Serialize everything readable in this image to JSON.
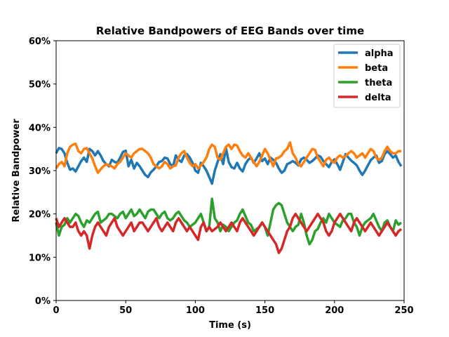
{
  "chart_data": {
    "type": "line",
    "title": "Relative Bandpowers of EEG Bands over time",
    "xlabel": "Time (s)",
    "ylabel": "Relative Bandpower",
    "xlim": [
      0,
      250
    ],
    "ylim": [
      0,
      0.6
    ],
    "xticks": [
      0,
      50,
      100,
      150,
      200,
      250
    ],
    "xtick_labels": [
      "0",
      "50",
      "100",
      "150",
      "200",
      "250"
    ],
    "yticks": [
      0,
      0.1,
      0.2,
      0.3,
      0.4,
      0.5,
      0.6
    ],
    "ytick_labels": [
      "0%",
      "10%",
      "20%",
      "30%",
      "40%",
      "50%",
      "60%"
    ],
    "grid": false,
    "legend_position": "top-right",
    "x": [
      0,
      2,
      4,
      6,
      8,
      10,
      12,
      14,
      16,
      18,
      20,
      22,
      24,
      26,
      28,
      30,
      32,
      34,
      36,
      38,
      40,
      42,
      44,
      46,
      48,
      50,
      52,
      54,
      56,
      58,
      60,
      62,
      64,
      66,
      68,
      70,
      72,
      74,
      76,
      78,
      80,
      82,
      84,
      86,
      88,
      90,
      92,
      94,
      96,
      98,
      100,
      102,
      104,
      106,
      108,
      110,
      112,
      114,
      116,
      118,
      120,
      122,
      124,
      126,
      128,
      130,
      132,
      134,
      136,
      138,
      140,
      142,
      144,
      146,
      148,
      150,
      152,
      154,
      156,
      158,
      160,
      162,
      164,
      166,
      168,
      170,
      172,
      174,
      176,
      178,
      180,
      182,
      184,
      186,
      188,
      190,
      192,
      194,
      196,
      198,
      200,
      202,
      204,
      206,
      208,
      210,
      212,
      214,
      216,
      218,
      220,
      222,
      224,
      226,
      228,
      230,
      232,
      234,
      236,
      238,
      240,
      242,
      244,
      246,
      248
    ],
    "series": [
      {
        "name": "alpha",
        "color": "#1f77b4",
        "values": [
          0.34,
          0.352,
          0.35,
          0.34,
          0.318,
          0.302,
          0.305,
          0.298,
          0.31,
          0.322,
          0.33,
          0.32,
          0.35,
          0.345,
          0.335,
          0.345,
          0.335,
          0.322,
          0.315,
          0.31,
          0.325,
          0.32,
          0.318,
          0.33,
          0.343,
          0.346,
          0.31,
          0.325,
          0.305,
          0.318,
          0.31,
          0.3,
          0.29,
          0.285,
          0.296,
          0.302,
          0.31,
          0.32,
          0.322,
          0.33,
          0.328,
          0.315,
          0.31,
          0.335,
          0.325,
          0.32,
          0.335,
          0.338,
          0.33,
          0.318,
          0.3,
          0.295,
          0.318,
          0.31,
          0.3,
          0.285,
          0.27,
          0.3,
          0.32,
          0.338,
          0.315,
          0.352,
          0.32,
          0.308,
          0.305,
          0.318,
          0.305,
          0.298,
          0.315,
          0.325,
          0.33,
          0.318,
          0.328,
          0.34,
          0.322,
          0.328,
          0.315,
          0.33,
          0.325,
          0.318,
          0.305,
          0.295,
          0.3,
          0.315,
          0.318,
          0.322,
          0.318,
          0.312,
          0.326,
          0.33,
          0.325,
          0.318,
          0.322,
          0.328,
          0.335,
          0.332,
          0.322,
          0.315,
          0.308,
          0.32,
          0.326,
          0.315,
          0.302,
          0.32,
          0.338,
          0.33,
          0.323,
          0.318,
          0.312,
          0.3,
          0.29,
          0.3,
          0.312,
          0.324,
          0.33,
          0.335,
          0.318,
          0.322,
          0.338,
          0.345,
          0.338,
          0.33,
          0.335,
          0.32,
          0.31
        ]
      },
      {
        "name": "beta",
        "color": "#ff7f0e",
        "values": [
          0.305,
          0.315,
          0.32,
          0.31,
          0.34,
          0.355,
          0.36,
          0.362,
          0.345,
          0.34,
          0.35,
          0.352,
          0.34,
          0.328,
          0.31,
          0.295,
          0.303,
          0.31,
          0.315,
          0.312,
          0.31,
          0.305,
          0.315,
          0.32,
          0.33,
          0.34,
          0.335,
          0.33,
          0.34,
          0.345,
          0.35,
          0.35,
          0.345,
          0.34,
          0.33,
          0.315,
          0.31,
          0.305,
          0.31,
          0.32,
          0.315,
          0.305,
          0.31,
          0.312,
          0.33,
          0.34,
          0.345,
          0.33,
          0.318,
          0.31,
          0.315,
          0.305,
          0.312,
          0.32,
          0.33,
          0.35,
          0.36,
          0.355,
          0.33,
          0.325,
          0.34,
          0.355,
          0.36,
          0.35,
          0.36,
          0.358,
          0.345,
          0.335,
          0.33,
          0.34,
          0.33,
          0.32,
          0.31,
          0.32,
          0.335,
          0.35,
          0.34,
          0.325,
          0.31,
          0.328,
          0.33,
          0.335,
          0.345,
          0.35,
          0.365,
          0.34,
          0.33,
          0.315,
          0.31,
          0.32,
          0.33,
          0.34,
          0.35,
          0.348,
          0.33,
          0.32,
          0.31,
          0.325,
          0.33,
          0.322,
          0.318,
          0.33,
          0.335,
          0.33,
          0.333,
          0.34,
          0.345,
          0.34,
          0.33,
          0.335,
          0.34,
          0.33,
          0.34,
          0.35,
          0.345,
          0.33,
          0.325,
          0.33,
          0.345,
          0.355,
          0.345,
          0.34,
          0.34,
          0.345,
          0.345
        ]
      },
      {
        "name": "theta",
        "color": "#2ca02c",
        "values": [
          0.18,
          0.15,
          0.17,
          0.175,
          0.19,
          0.18,
          0.19,
          0.2,
          0.195,
          0.18,
          0.17,
          0.185,
          0.18,
          0.19,
          0.2,
          0.205,
          0.18,
          0.185,
          0.19,
          0.2,
          0.2,
          0.195,
          0.19,
          0.2,
          0.205,
          0.19,
          0.2,
          0.21,
          0.195,
          0.2,
          0.21,
          0.2,
          0.19,
          0.205,
          0.21,
          0.21,
          0.2,
          0.19,
          0.2,
          0.205,
          0.19,
          0.185,
          0.19,
          0.2,
          0.205,
          0.195,
          0.185,
          0.18,
          0.17,
          0.175,
          0.18,
          0.19,
          0.2,
          0.18,
          0.16,
          0.17,
          0.235,
          0.19,
          0.18,
          0.16,
          0.175,
          0.17,
          0.16,
          0.17,
          0.18,
          0.185,
          0.2,
          0.21,
          0.195,
          0.18,
          0.175,
          0.16,
          0.165,
          0.17,
          0.18,
          0.17,
          0.15,
          0.18,
          0.21,
          0.22,
          0.225,
          0.22,
          0.2,
          0.18,
          0.17,
          0.16,
          0.17,
          0.175,
          0.2,
          0.18,
          0.15,
          0.13,
          0.14,
          0.16,
          0.165,
          0.18,
          0.19,
          0.18,
          0.2,
          0.19,
          0.18,
          0.175,
          0.17,
          0.185,
          0.19,
          0.2,
          0.2,
          0.18,
          0.17,
          0.15,
          0.17,
          0.18,
          0.185,
          0.19,
          0.2,
          0.185,
          0.17,
          0.16,
          0.18,
          0.185,
          0.17,
          0.16,
          0.185,
          0.175,
          0.18
        ]
      },
      {
        "name": "delta",
        "color": "#d62728",
        "values": [
          0.19,
          0.17,
          0.18,
          0.19,
          0.18,
          0.17,
          0.17,
          0.18,
          0.16,
          0.15,
          0.16,
          0.15,
          0.12,
          0.15,
          0.17,
          0.18,
          0.17,
          0.16,
          0.15,
          0.17,
          0.18,
          0.19,
          0.17,
          0.16,
          0.15,
          0.16,
          0.17,
          0.18,
          0.16,
          0.17,
          0.18,
          0.18,
          0.17,
          0.16,
          0.17,
          0.18,
          0.19,
          0.17,
          0.16,
          0.17,
          0.18,
          0.17,
          0.16,
          0.18,
          0.19,
          0.18,
          0.17,
          0.16,
          0.17,
          0.16,
          0.15,
          0.14,
          0.17,
          0.18,
          0.16,
          0.17,
          0.16,
          0.165,
          0.17,
          0.18,
          0.17,
          0.16,
          0.17,
          0.18,
          0.17,
          0.16,
          0.18,
          0.19,
          0.18,
          0.17,
          0.16,
          0.15,
          0.16,
          0.17,
          0.18,
          0.17,
          0.16,
          0.15,
          0.14,
          0.13,
          0.11,
          0.12,
          0.14,
          0.16,
          0.17,
          0.19,
          0.2,
          0.19,
          0.18,
          0.17,
          0.16,
          0.17,
          0.18,
          0.19,
          0.2,
          0.19,
          0.18,
          0.16,
          0.15,
          0.16,
          0.18,
          0.19,
          0.2,
          0.19,
          0.18,
          0.17,
          0.16,
          0.18,
          0.19,
          0.18,
          0.17,
          0.16,
          0.17,
          0.18,
          0.17,
          0.16,
          0.15,
          0.16,
          0.17,
          0.18,
          0.17,
          0.16,
          0.15,
          0.16,
          0.165
        ]
      }
    ]
  }
}
